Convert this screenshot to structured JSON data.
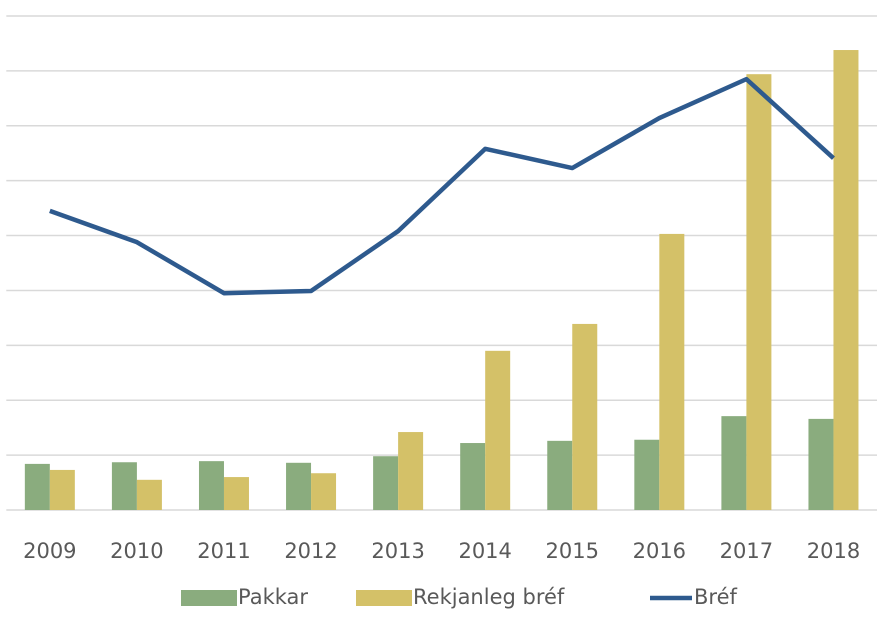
{
  "chart_data": {
    "type": "bar_line",
    "categories": [
      "2009",
      "2010",
      "2011",
      "2012",
      "2013",
      "2014",
      "2015",
      "2016",
      "2017",
      "2018"
    ],
    "series": [
      {
        "name": "Pakkar",
        "color": "#8aac7e",
        "values": [
          0.84,
          0.87,
          0.89,
          0.86,
          0.98,
          1.22,
          1.26,
          1.28,
          1.71,
          1.66
        ]
      },
      {
        "name": "Rekjanleg bréf",
        "color": "#d4c168",
        "values": [
          0.73,
          0.55,
          0.6,
          0.67,
          1.42,
          2.9,
          3.39,
          5.03,
          7.94,
          8.38
        ]
      },
      {
        "name": "Bréf",
        "color": "#2e5a8e",
        "type": "line",
        "values": [
          5.45,
          4.88,
          3.95,
          3.99,
          5.08,
          6.58,
          6.23,
          7.14,
          7.85,
          6.41
        ]
      }
    ],
    "ylim": [
      0,
      9
    ],
    "yticks": [
      0,
      1,
      2,
      3,
      4,
      5,
      6,
      7,
      8,
      9
    ],
    "grid": true
  }
}
